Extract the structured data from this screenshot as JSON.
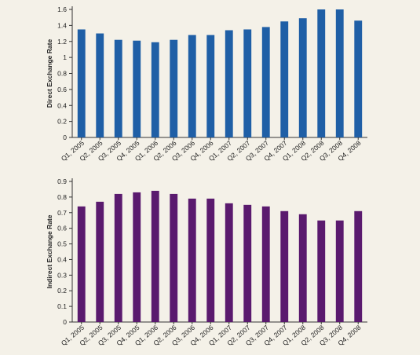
{
  "chart_data": [
    {
      "type": "bar",
      "categories": [
        "Q1, 2005",
        "Q2, 2005",
        "Q3, 2005",
        "Q4, 2005",
        "Q1, 2006",
        "Q2, 2006",
        "Q3, 2006",
        "Q4, 2006",
        "Q1, 2007",
        "Q2, 2007",
        "Q3, 2007",
        "Q4, 2007",
        "Q1, 2008",
        "Q2, 2008",
        "Q3, 2008",
        "Q4, 2008"
      ],
      "values": [
        1.35,
        1.3,
        1.22,
        1.21,
        1.19,
        1.22,
        1.28,
        1.28,
        1.34,
        1.35,
        1.38,
        1.45,
        1.49,
        1.6,
        1.6,
        1.46
      ],
      "title": "",
      "xlabel": "",
      "ylabel": "Direct Exchange Rate",
      "ylim": [
        0,
        1.6
      ],
      "yticks": [
        "0",
        "0.2",
        "0.4",
        "0.6",
        "0.8",
        "1",
        "1.2",
        "1.4",
        "1.6"
      ],
      "color": "#1f5fa6",
      "grid": false
    },
    {
      "type": "bar",
      "categories": [
        "Q1, 2005",
        "Q2, 2005",
        "Q3, 2005",
        "Q4, 2005",
        "Q1, 2006",
        "Q2, 2006",
        "Q3, 2006",
        "Q4, 2006",
        "Q1, 2007",
        "Q2, 2007",
        "Q3, 2007",
        "Q4, 2007",
        "Q1, 2008",
        "Q2, 2008",
        "Q3, 2008",
        "Q4, 2008"
      ],
      "values": [
        0.74,
        0.77,
        0.82,
        0.83,
        0.84,
        0.82,
        0.79,
        0.79,
        0.76,
        0.75,
        0.74,
        0.71,
        0.69,
        0.65,
        0.65,
        0.71
      ],
      "title": "",
      "xlabel": "",
      "ylabel": "Indirect Exchange Rate",
      "ylim": [
        0,
        0.9
      ],
      "yticks": [
        "0",
        "0.1",
        "0.2",
        "0.3",
        "0.4",
        "0.5",
        "0.6",
        "0.7",
        "0.8",
        "0.9"
      ],
      "color": "#5a1a6e",
      "grid": false
    }
  ]
}
